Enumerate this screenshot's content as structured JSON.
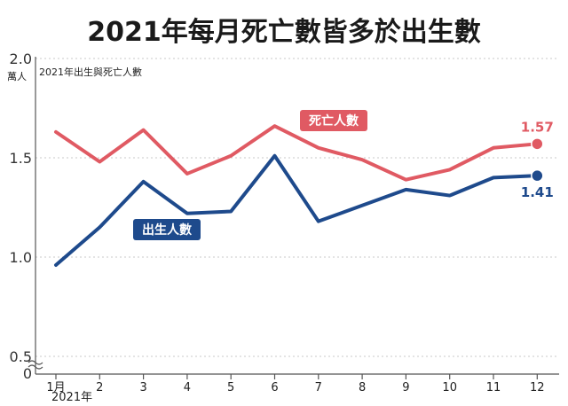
{
  "title": "2021年每月死亡數皆多於出生數",
  "chart_data": {
    "type": "line",
    "subtitle": "2021年出生與死亡人數",
    "unit_label": "萬人",
    "categories": [
      "1月",
      "2",
      "3",
      "4",
      "5",
      "6",
      "7",
      "8",
      "9",
      "10",
      "11",
      "12"
    ],
    "year_label": "2021年",
    "y_ticks": [
      "0.5",
      "1.0",
      "1.5",
      "2.0"
    ],
    "y_zero": "0",
    "ylim": [
      0.5,
      2.0
    ],
    "axis_break": true,
    "grid": "horizontal dashed",
    "series": [
      {
        "name": "死亡人數",
        "color": "#e05a63",
        "values": [
          1.63,
          1.48,
          1.64,
          1.42,
          1.51,
          1.66,
          1.55,
          1.49,
          1.39,
          1.44,
          1.55,
          1.57
        ],
        "end_label": "1.57"
      },
      {
        "name": "出生人數",
        "color": "#1e4a8c",
        "values": [
          0.96,
          1.15,
          1.38,
          1.22,
          1.23,
          1.51,
          1.18,
          1.26,
          1.34,
          1.31,
          1.4,
          1.41
        ],
        "end_label": "1.41"
      }
    ]
  }
}
